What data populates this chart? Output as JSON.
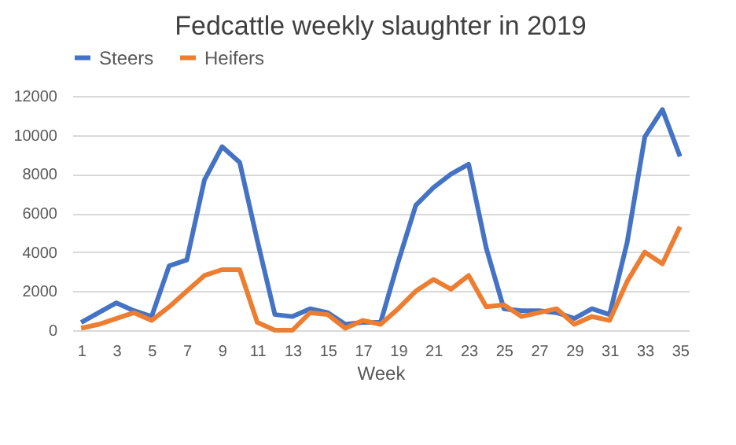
{
  "chart_data": {
    "type": "line",
    "title": "Fedcattle weekly slaughter in 2019",
    "xlabel": "Week",
    "x": [
      1,
      2,
      3,
      4,
      5,
      6,
      7,
      8,
      9,
      10,
      11,
      12,
      13,
      14,
      15,
      16,
      17,
      18,
      19,
      20,
      21,
      22,
      23,
      24,
      25,
      26,
      27,
      28,
      29,
      30,
      31,
      32,
      33,
      34,
      35
    ],
    "xlim": [
      0.5,
      35.5
    ],
    "xticks": [
      1,
      3,
      5,
      7,
      9,
      11,
      13,
      15,
      17,
      19,
      21,
      23,
      25,
      27,
      29,
      31,
      33,
      35
    ],
    "series": [
      {
        "name": "Steers",
        "color": "#4472c4",
        "values": [
          400,
          900,
          1400,
          1000,
          700,
          3300,
          3600,
          7700,
          9400,
          8600,
          4600,
          800,
          700,
          1100,
          900,
          300,
          400,
          400,
          3500,
          6400,
          7300,
          8000,
          8500,
          4200,
          1100,
          1000,
          1000,
          900,
          600,
          1100,
          800,
          4500,
          9900,
          11300,
          8900
        ]
      },
      {
        "name": "Heifers",
        "color": "#ed7d31",
        "values": [
          100,
          300,
          600,
          900,
          500,
          1200,
          2000,
          2800,
          3100,
          3100,
          400,
          0,
          0,
          900,
          800,
          100,
          500,
          300,
          1100,
          2000,
          2600,
          2100,
          2800,
          1200,
          1300,
          700,
          900,
          1100,
          300,
          700,
          500,
          2500,
          4000,
          3400,
          5300
        ]
      }
    ],
    "ylim": [
      0,
      12000
    ],
    "yticks": [
      0,
      2000,
      4000,
      6000,
      8000,
      10000,
      12000
    ],
    "grid": "y",
    "legend": "top"
  }
}
